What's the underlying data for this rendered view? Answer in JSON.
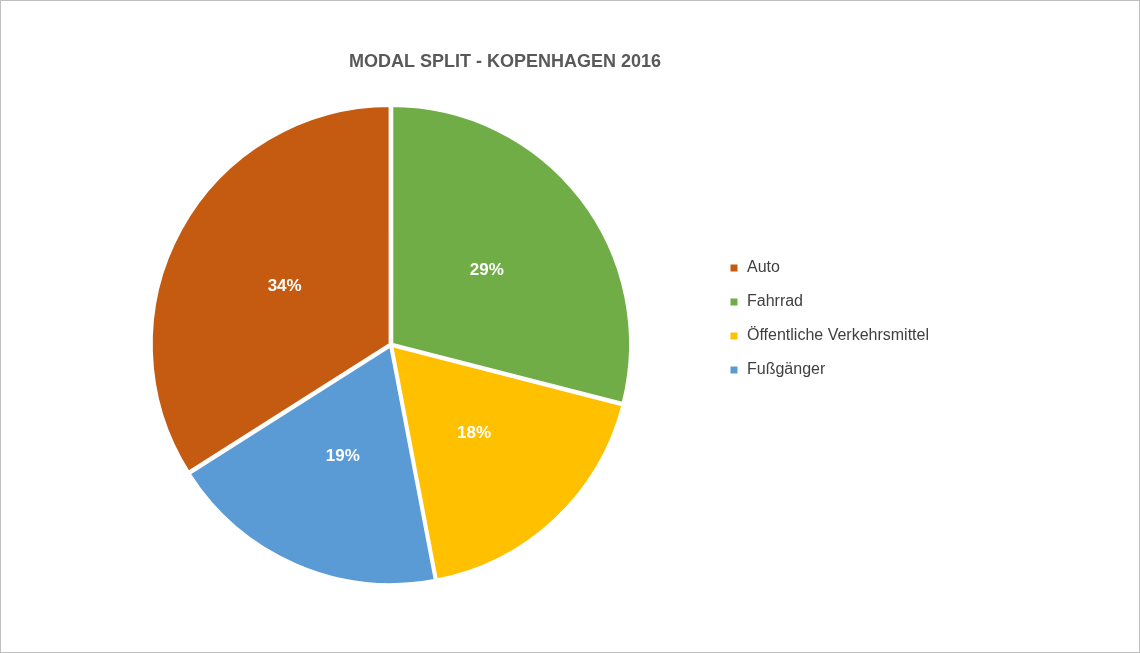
{
  "chart_data": {
    "type": "pie",
    "title": "MODAL SPLIT - KOPENHAGEN 2016",
    "categories": [
      "Auto",
      "Fahrrad",
      "Öffentliche Verkehrsmittel",
      "Fußgänger"
    ],
    "values": [
      34,
      29,
      18,
      19
    ],
    "value_labels": [
      "34%",
      "29%",
      "18%",
      "19%"
    ],
    "colors": [
      "#c55a11",
      "#70ad47",
      "#ffc000",
      "#5b9bd5"
    ],
    "data_labels": true,
    "legend": "right"
  }
}
